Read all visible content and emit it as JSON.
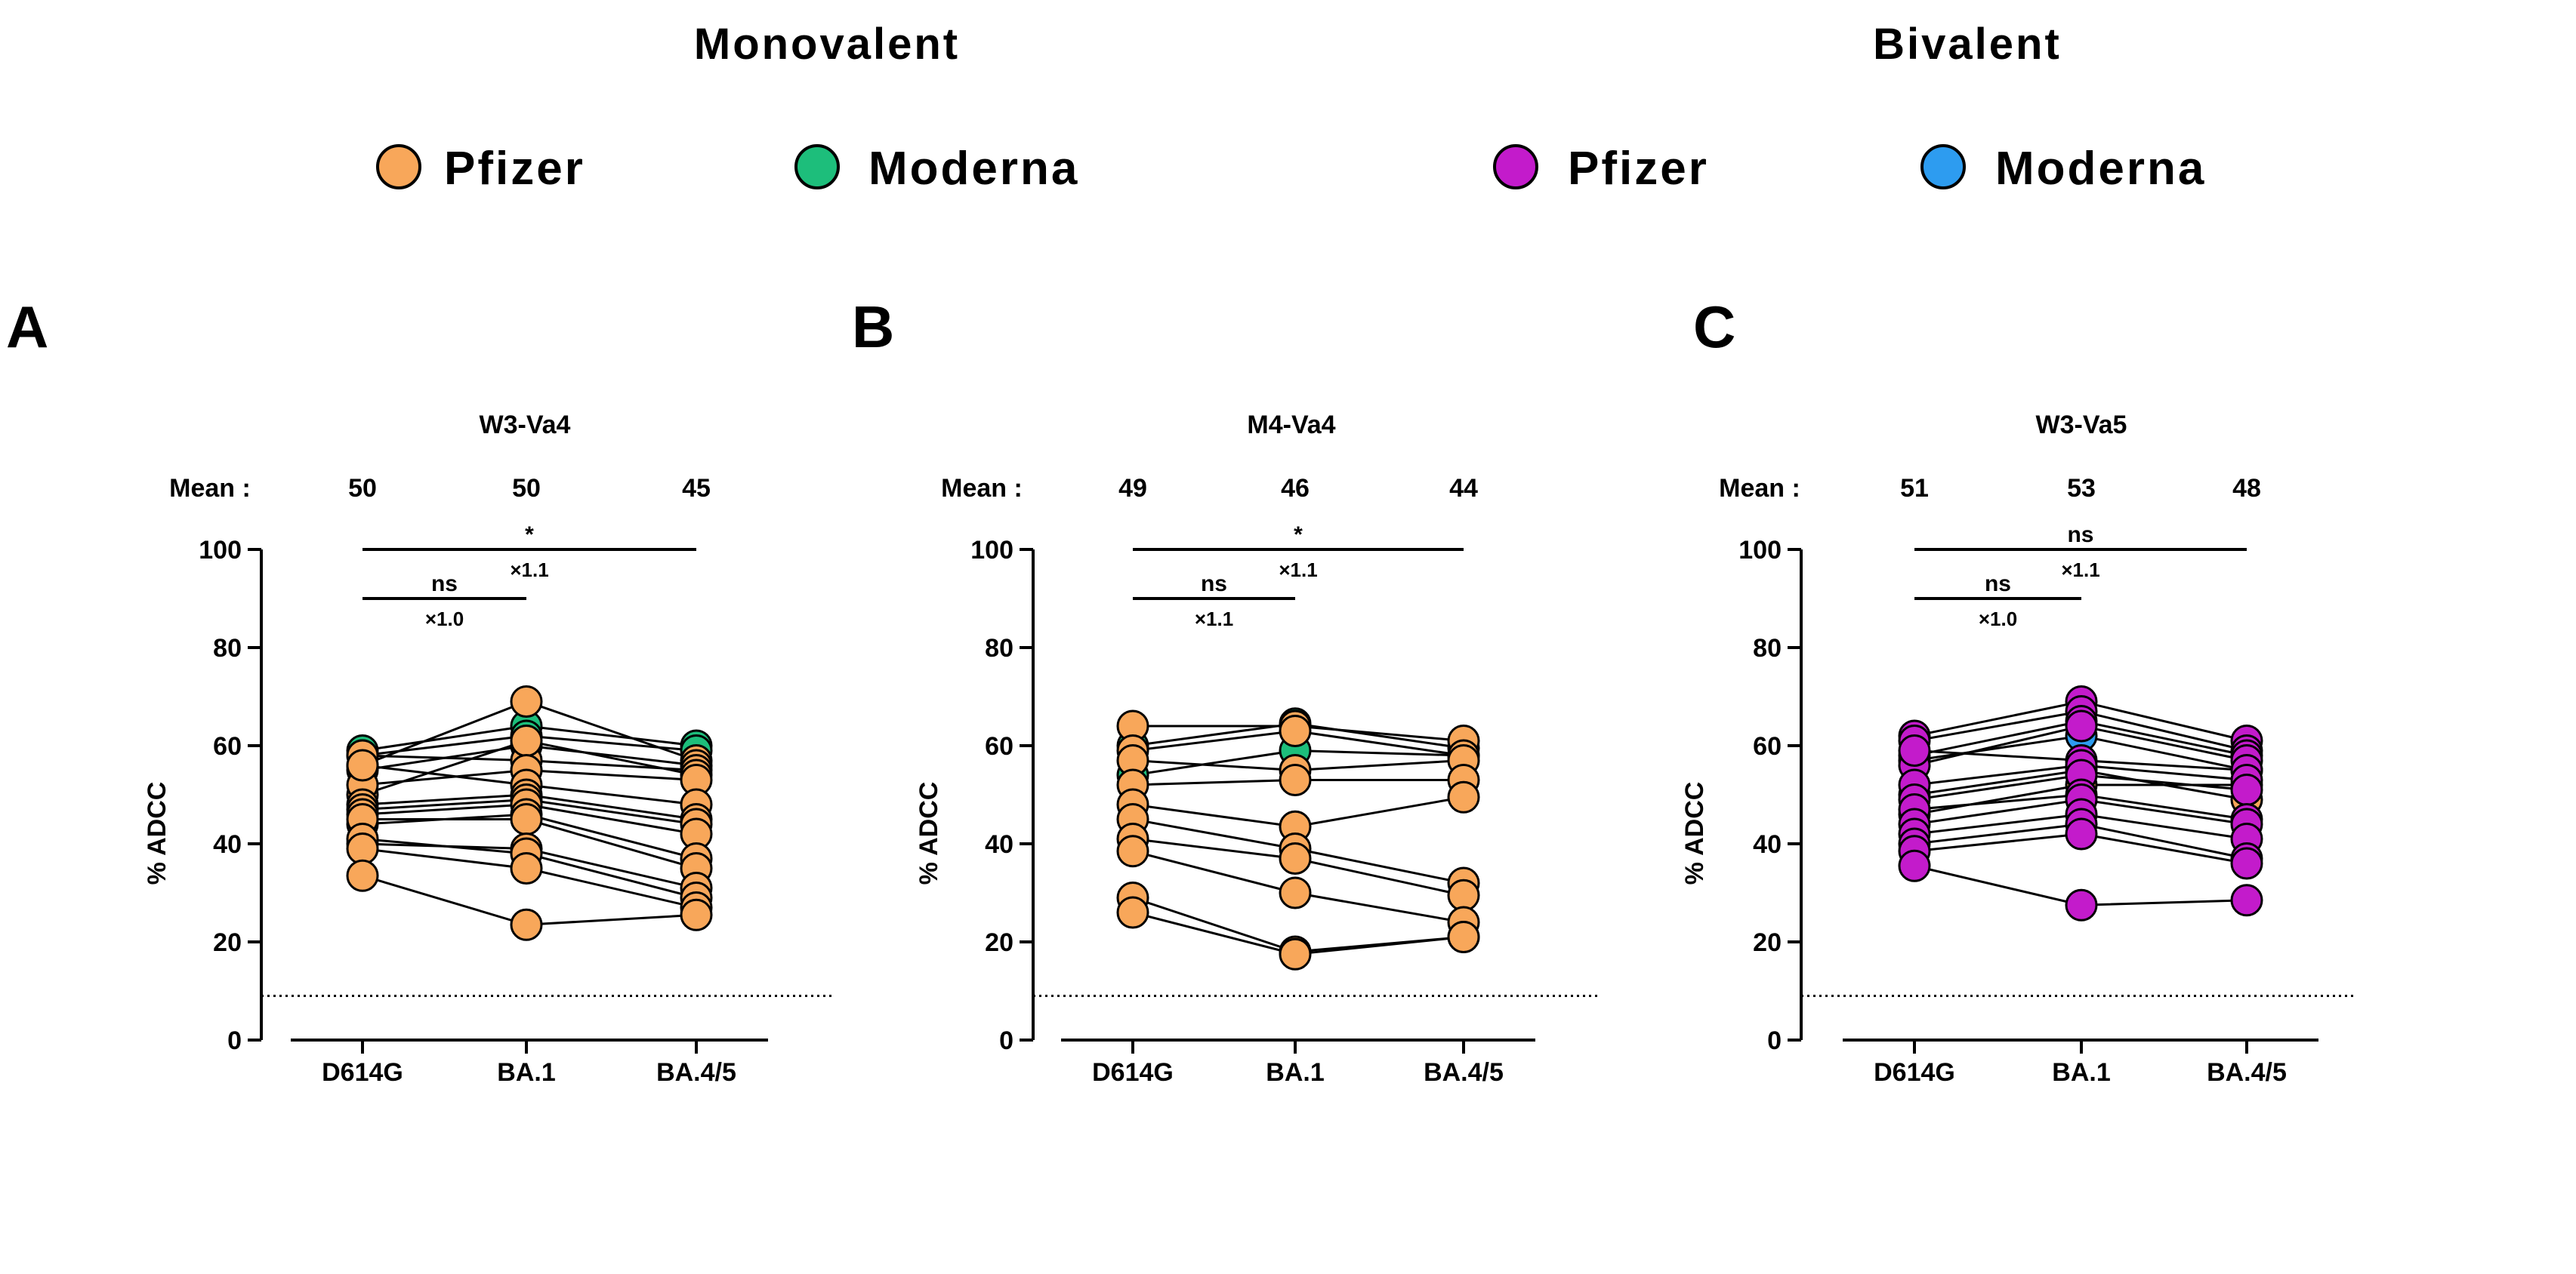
{
  "legend": {
    "groups": [
      {
        "title": "Monovalent",
        "items": [
          {
            "label": "Pfizer",
            "color": "#F8A75A"
          },
          {
            "label": "Moderna",
            "color": "#1DBE7B"
          }
        ]
      },
      {
        "title": "Bivalent",
        "items": [
          {
            "label": "Pfizer",
            "color": "#C31BCB"
          },
          {
            "label": "Moderna",
            "color": "#2D9CF0"
          }
        ]
      }
    ]
  },
  "chart_data": [
    {
      "type": "scatter",
      "panel": "A",
      "title": "W3-Va4",
      "mean_label": "Mean :",
      "means": [
        "50",
        "50",
        "45"
      ],
      "categories": [
        "D614G",
        "BA.1",
        "BA.4/5"
      ],
      "ylabel": "% ADCC",
      "ylim": [
        0,
        100
      ],
      "yticks": [
        "0",
        "20",
        "40",
        "60",
        "80",
        "100"
      ],
      "threshold": 9,
      "comparisons": [
        {
          "from": 0,
          "to": 1,
          "y": 90,
          "label": "ns",
          "ratio": "×1.0"
        },
        {
          "from": 0,
          "to": 2,
          "y": 100,
          "label": "*",
          "ratio": "×1.1"
        }
      ],
      "series": [
        {
          "name": "Moderna",
          "color": "#1DBE7B",
          "values": [
            59,
            64,
            60
          ]
        },
        {
          "name": "Moderna",
          "color": "#1DBE7B",
          "values": [
            58,
            62,
            59
          ]
        },
        {
          "name": "Pfizer",
          "color": "#F8A75A",
          "values": [
            56,
            69,
            57
          ]
        },
        {
          "name": "Pfizer",
          "color": "#F8A75A",
          "values": [
            55,
            60,
            56
          ]
        },
        {
          "name": "Pfizer",
          "color": "#F8A75A",
          "values": [
            58,
            57,
            55
          ]
        },
        {
          "name": "Pfizer",
          "color": "#F8A75A",
          "values": [
            50,
            61,
            54
          ]
        },
        {
          "name": "Pfizer",
          "color": "#F8A75A",
          "values": [
            52,
            55,
            53
          ]
        },
        {
          "name": "Pfizer",
          "color": "#F8A75A",
          "values": [
            56,
            52,
            48
          ]
        },
        {
          "name": "Pfizer",
          "color": "#F8A75A",
          "values": [
            48,
            50,
            45
          ]
        },
        {
          "name": "Pfizer",
          "color": "#F8A75A",
          "values": [
            47,
            49,
            44
          ]
        },
        {
          "name": "Pfizer",
          "color": "#F8A75A",
          "values": [
            46,
            48,
            42
          ]
        },
        {
          "name": "Pfizer",
          "color": "#F8A75A",
          "values": [
            44,
            46,
            37
          ]
        },
        {
          "name": "Pfizer",
          "color": "#F8A75A",
          "values": [
            45,
            45,
            35
          ]
        },
        {
          "name": "Pfizer",
          "color": "#F8A75A",
          "values": [
            40,
            39,
            31
          ]
        },
        {
          "name": "Pfizer",
          "color": "#F8A75A",
          "values": [
            41,
            38,
            29
          ]
        },
        {
          "name": "Pfizer",
          "color": "#F8A75A",
          "values": [
            39,
            35,
            27
          ]
        },
        {
          "name": "Pfizer",
          "color": "#F8A75A",
          "values": [
            33.5,
            23.5,
            25.5
          ]
        }
      ]
    },
    {
      "type": "scatter",
      "panel": "B",
      "title": "M4-Va4",
      "mean_label": "Mean :",
      "means": [
        "49",
        "46",
        "44"
      ],
      "categories": [
        "D614G",
        "BA.1",
        "BA.4/5"
      ],
      "ylabel": "% ADCC",
      "ylim": [
        0,
        100
      ],
      "yticks": [
        "0",
        "20",
        "40",
        "60",
        "80",
        "100"
      ],
      "threshold": 9,
      "comparisons": [
        {
          "from": 0,
          "to": 1,
          "y": 90,
          "label": "ns",
          "ratio": "×1.1"
        },
        {
          "from": 0,
          "to": 2,
          "y": 100,
          "label": "*",
          "ratio": "×1.1"
        }
      ],
      "series": [
        {
          "name": "Moderna",
          "color": "#1DBE7B",
          "values": [
            60,
            64.5,
            59.5
          ]
        },
        {
          "name": "Moderna",
          "color": "#1DBE7B",
          "values": [
            54,
            59,
            58
          ]
        },
        {
          "name": "Pfizer",
          "color": "#F8A75A",
          "values": [
            64,
            64,
            61
          ]
        },
        {
          "name": "Pfizer",
          "color": "#F8A75A",
          "values": [
            59,
            63,
            58
          ]
        },
        {
          "name": "Pfizer",
          "color": "#F8A75A",
          "values": [
            57,
            55,
            57
          ]
        },
        {
          "name": "Pfizer",
          "color": "#F8A75A",
          "values": [
            52,
            53,
            53
          ]
        },
        {
          "name": "Pfizer",
          "color": "#F8A75A",
          "values": [
            48,
            43.5,
            49.5
          ]
        },
        {
          "name": "Pfizer",
          "color": "#F8A75A",
          "values": [
            45,
            39,
            32
          ]
        },
        {
          "name": "Pfizer",
          "color": "#F8A75A",
          "values": [
            41,
            37,
            29.5
          ]
        },
        {
          "name": "Pfizer",
          "color": "#F8A75A",
          "values": [
            38.5,
            30,
            24
          ]
        },
        {
          "name": "Pfizer",
          "color": "#F8A75A",
          "values": [
            29,
            18,
            21
          ]
        },
        {
          "name": "Pfizer",
          "color": "#F8A75A",
          "values": [
            26,
            17.5,
            21
          ]
        }
      ]
    },
    {
      "type": "scatter",
      "panel": "C",
      "title": "W3-Va5",
      "mean_label": "Mean :",
      "means": [
        "51",
        "53",
        "48"
      ],
      "categories": [
        "D614G",
        "BA.1",
        "BA.4/5"
      ],
      "ylabel": "% ADCC",
      "ylim": [
        0,
        100
      ],
      "yticks": [
        "0",
        "20",
        "40",
        "60",
        "80",
        "100"
      ],
      "threshold": 9,
      "comparisons": [
        {
          "from": 0,
          "to": 1,
          "y": 90,
          "label": "ns",
          "ratio": "×1.0"
        },
        {
          "from": 0,
          "to": 2,
          "y": 100,
          "label": "ns",
          "ratio": "×1.1"
        }
      ],
      "series": [
        {
          "name": "Moderna",
          "color": "#2D9CF0",
          "values": [
            57,
            62,
            55
          ]
        },
        {
          "name": "Pfizer",
          "color": "#F8A75A",
          "values": [
            50,
            55,
            49
          ]
        },
        {
          "name": "Pfizer",
          "color": "#F8A75A",
          "values": [
            46,
            52,
            52
          ]
        },
        {
          "name": "Pfizer",
          "color": "#C31BCB",
          "values": [
            62,
            69,
            61
          ]
        },
        {
          "name": "Pfizer",
          "color": "#C31BCB",
          "values": [
            61,
            67,
            59
          ]
        },
        {
          "name": "Pfizer",
          "color": "#C31BCB",
          "values": [
            58,
            65,
            58
          ]
        },
        {
          "name": "Pfizer",
          "color": "#C31BCB",
          "values": [
            56,
            64,
            57
          ]
        },
        {
          "name": "Pfizer",
          "color": "#C31BCB",
          "values": [
            59,
            57,
            55
          ]
        },
        {
          "name": "Pfizer",
          "color": "#C31BCB",
          "values": [
            52,
            56,
            53
          ]
        },
        {
          "name": "Pfizer",
          "color": "#C31BCB",
          "values": [
            49,
            54,
            51
          ]
        },
        {
          "name": "Pfizer",
          "color": "#C31BCB",
          "values": [
            47,
            50,
            45
          ]
        },
        {
          "name": "Pfizer",
          "color": "#C31BCB",
          "values": [
            44,
            49,
            44
          ]
        },
        {
          "name": "Pfizer",
          "color": "#C31BCB",
          "values": [
            42,
            46,
            41
          ]
        },
        {
          "name": "Pfizer",
          "color": "#C31BCB",
          "values": [
            40,
            44,
            37
          ]
        },
        {
          "name": "Pfizer",
          "color": "#C31BCB",
          "values": [
            38.5,
            42,
            36
          ]
        },
        {
          "name": "Pfizer",
          "color": "#C31BCB",
          "values": [
            35.5,
            27.5,
            28.5
          ]
        }
      ]
    }
  ]
}
